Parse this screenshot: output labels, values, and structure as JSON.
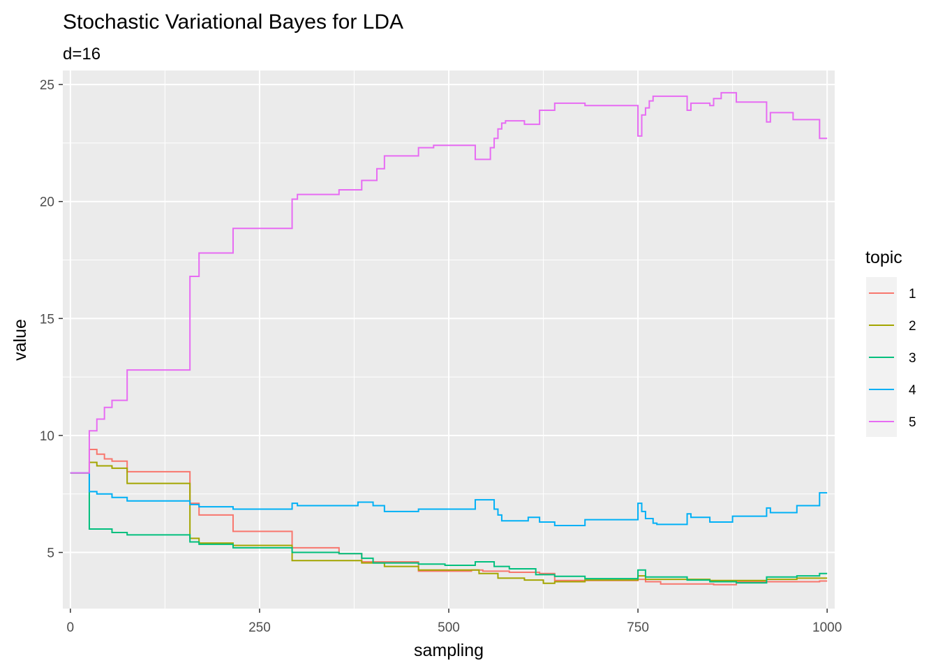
{
  "chart_data": {
    "type": "line",
    "title": "Stochastic Variational Bayes for LDA",
    "subtitle": "d=16",
    "xlabel": "sampling",
    "ylabel": "value",
    "xlim": [
      -10,
      1010
    ],
    "ylim": [
      2.6,
      25.6
    ],
    "x_ticks": [
      0,
      250,
      500,
      750,
      1000
    ],
    "x_tick_labels": [
      "0",
      "250",
      "500",
      "750",
      "1000"
    ],
    "y_ticks": [
      5,
      10,
      15,
      20,
      25
    ],
    "y_tick_labels": [
      "5",
      "10",
      "15",
      "20",
      "25"
    ],
    "step": true,
    "grid": true,
    "legend_position": "right",
    "legend_title": "topic",
    "series": [
      {
        "name": "1",
        "color": "#F8766D",
        "points": [
          [
            0,
            8.4
          ],
          [
            25,
            8.4
          ],
          [
            25,
            9.4
          ],
          [
            35,
            9.4
          ],
          [
            35,
            9.2
          ],
          [
            45,
            9.2
          ],
          [
            45,
            9.0
          ],
          [
            55,
            9.0
          ],
          [
            55,
            8.9
          ],
          [
            75,
            8.9
          ],
          [
            75,
            8.45
          ],
          [
            158,
            8.45
          ],
          [
            158,
            7.1
          ],
          [
            170,
            7.1
          ],
          [
            170,
            6.6
          ],
          [
            215,
            6.6
          ],
          [
            215,
            5.9
          ],
          [
            293,
            5.9
          ],
          [
            293,
            5.2
          ],
          [
            355,
            5.2
          ],
          [
            355,
            4.95
          ],
          [
            385,
            4.95
          ],
          [
            385,
            4.6
          ],
          [
            460,
            4.6
          ],
          [
            460,
            4.2
          ],
          [
            530,
            4.2
          ],
          [
            530,
            4.25
          ],
          [
            545,
            4.25
          ],
          [
            545,
            4.2
          ],
          [
            580,
            4.2
          ],
          [
            580,
            4.15
          ],
          [
            620,
            4.15
          ],
          [
            620,
            4.1
          ],
          [
            640,
            4.1
          ],
          [
            640,
            3.8
          ],
          [
            750,
            3.8
          ],
          [
            750,
            3.85
          ],
          [
            760,
            3.85
          ],
          [
            760,
            3.75
          ],
          [
            780,
            3.75
          ],
          [
            780,
            3.65
          ],
          [
            850,
            3.65
          ],
          [
            850,
            3.62
          ],
          [
            880,
            3.62
          ],
          [
            880,
            3.75
          ],
          [
            990,
            3.75
          ],
          [
            990,
            3.78
          ],
          [
            1000,
            3.78
          ]
        ]
      },
      {
        "name": "2",
        "color": "#A3A500",
        "points": [
          [
            0,
            8.4
          ],
          [
            25,
            8.4
          ],
          [
            25,
            8.85
          ],
          [
            35,
            8.85
          ],
          [
            35,
            8.7
          ],
          [
            55,
            8.7
          ],
          [
            55,
            8.6
          ],
          [
            75,
            8.6
          ],
          [
            75,
            7.95
          ],
          [
            158,
            7.95
          ],
          [
            158,
            5.6
          ],
          [
            170,
            5.6
          ],
          [
            170,
            5.4
          ],
          [
            215,
            5.4
          ],
          [
            215,
            5.3
          ],
          [
            293,
            5.3
          ],
          [
            293,
            4.65
          ],
          [
            385,
            4.65
          ],
          [
            385,
            4.55
          ],
          [
            415,
            4.55
          ],
          [
            415,
            4.4
          ],
          [
            460,
            4.4
          ],
          [
            460,
            4.25
          ],
          [
            540,
            4.25
          ],
          [
            540,
            4.1
          ],
          [
            565,
            4.1
          ],
          [
            565,
            3.9
          ],
          [
            600,
            3.9
          ],
          [
            600,
            3.82
          ],
          [
            625,
            3.82
          ],
          [
            625,
            3.68
          ],
          [
            640,
            3.68
          ],
          [
            640,
            3.75
          ],
          [
            680,
            3.75
          ],
          [
            680,
            3.82
          ],
          [
            750,
            3.82
          ],
          [
            750,
            4.0
          ],
          [
            760,
            4.0
          ],
          [
            760,
            3.85
          ],
          [
            845,
            3.85
          ],
          [
            845,
            3.8
          ],
          [
            920,
            3.8
          ],
          [
            920,
            3.85
          ],
          [
            960,
            3.85
          ],
          [
            960,
            3.9
          ],
          [
            1000,
            3.9
          ]
        ]
      },
      {
        "name": "3",
        "color": "#00BF7D",
        "points": [
          [
            0,
            8.4
          ],
          [
            25,
            8.4
          ],
          [
            25,
            6.0
          ],
          [
            55,
            6.0
          ],
          [
            55,
            5.85
          ],
          [
            75,
            5.85
          ],
          [
            75,
            5.75
          ],
          [
            158,
            5.75
          ],
          [
            158,
            5.45
          ],
          [
            170,
            5.45
          ],
          [
            170,
            5.35
          ],
          [
            215,
            5.35
          ],
          [
            215,
            5.2
          ],
          [
            293,
            5.2
          ],
          [
            293,
            5.0
          ],
          [
            355,
            5.0
          ],
          [
            355,
            4.95
          ],
          [
            385,
            4.95
          ],
          [
            385,
            4.75
          ],
          [
            400,
            4.75
          ],
          [
            400,
            4.55
          ],
          [
            460,
            4.55
          ],
          [
            460,
            4.5
          ],
          [
            495,
            4.5
          ],
          [
            495,
            4.45
          ],
          [
            535,
            4.45
          ],
          [
            535,
            4.6
          ],
          [
            560,
            4.6
          ],
          [
            560,
            4.4
          ],
          [
            580,
            4.4
          ],
          [
            580,
            4.3
          ],
          [
            615,
            4.3
          ],
          [
            615,
            4.05
          ],
          [
            640,
            4.05
          ],
          [
            640,
            3.98
          ],
          [
            680,
            3.98
          ],
          [
            680,
            3.88
          ],
          [
            750,
            3.88
          ],
          [
            750,
            4.25
          ],
          [
            760,
            4.25
          ],
          [
            760,
            3.95
          ],
          [
            815,
            3.95
          ],
          [
            815,
            3.82
          ],
          [
            845,
            3.82
          ],
          [
            845,
            3.75
          ],
          [
            880,
            3.75
          ],
          [
            880,
            3.7
          ],
          [
            920,
            3.7
          ],
          [
            920,
            3.95
          ],
          [
            960,
            3.95
          ],
          [
            960,
            4.0
          ],
          [
            990,
            4.0
          ],
          [
            990,
            4.1
          ],
          [
            1000,
            4.1
          ]
        ]
      },
      {
        "name": "4",
        "color": "#00B0F6",
        "points": [
          [
            0,
            8.4
          ],
          [
            25,
            8.4
          ],
          [
            25,
            7.6
          ],
          [
            35,
            7.6
          ],
          [
            35,
            7.5
          ],
          [
            55,
            7.5
          ],
          [
            55,
            7.35
          ],
          [
            75,
            7.35
          ],
          [
            75,
            7.2
          ],
          [
            158,
            7.2
          ],
          [
            158,
            7.05
          ],
          [
            170,
            7.05
          ],
          [
            170,
            6.95
          ],
          [
            215,
            6.95
          ],
          [
            215,
            6.85
          ],
          [
            293,
            6.85
          ],
          [
            293,
            7.1
          ],
          [
            300,
            7.1
          ],
          [
            300,
            7.0
          ],
          [
            380,
            7.0
          ],
          [
            380,
            7.15
          ],
          [
            400,
            7.15
          ],
          [
            400,
            7.0
          ],
          [
            415,
            7.0
          ],
          [
            415,
            6.75
          ],
          [
            460,
            6.75
          ],
          [
            460,
            6.85
          ],
          [
            535,
            6.85
          ],
          [
            535,
            7.25
          ],
          [
            560,
            7.25
          ],
          [
            560,
            6.85
          ],
          [
            565,
            6.85
          ],
          [
            565,
            6.6
          ],
          [
            570,
            6.6
          ],
          [
            570,
            6.35
          ],
          [
            605,
            6.35
          ],
          [
            605,
            6.5
          ],
          [
            620,
            6.5
          ],
          [
            620,
            6.3
          ],
          [
            640,
            6.3
          ],
          [
            640,
            6.15
          ],
          [
            680,
            6.15
          ],
          [
            680,
            6.4
          ],
          [
            750,
            6.4
          ],
          [
            750,
            7.1
          ],
          [
            755,
            7.1
          ],
          [
            755,
            6.75
          ],
          [
            760,
            6.75
          ],
          [
            760,
            6.45
          ],
          [
            770,
            6.45
          ],
          [
            770,
            6.25
          ],
          [
            775,
            6.25
          ],
          [
            775,
            6.2
          ],
          [
            815,
            6.2
          ],
          [
            815,
            6.65
          ],
          [
            820,
            6.65
          ],
          [
            820,
            6.5
          ],
          [
            845,
            6.5
          ],
          [
            845,
            6.3
          ],
          [
            875,
            6.3
          ],
          [
            875,
            6.55
          ],
          [
            920,
            6.55
          ],
          [
            920,
            6.9
          ],
          [
            925,
            6.9
          ],
          [
            925,
            6.7
          ],
          [
            960,
            6.7
          ],
          [
            960,
            7.0
          ],
          [
            990,
            7.0
          ],
          [
            990,
            7.55
          ],
          [
            1000,
            7.55
          ]
        ]
      },
      {
        "name": "5",
        "color": "#E76BF3",
        "points": [
          [
            0,
            8.4
          ],
          [
            25,
            8.4
          ],
          [
            25,
            10.2
          ],
          [
            35,
            10.2
          ],
          [
            35,
            10.7
          ],
          [
            45,
            10.7
          ],
          [
            45,
            11.2
          ],
          [
            55,
            11.2
          ],
          [
            55,
            11.5
          ],
          [
            75,
            11.5
          ],
          [
            75,
            12.8
          ],
          [
            158,
            12.8
          ],
          [
            158,
            16.8
          ],
          [
            170,
            16.8
          ],
          [
            170,
            17.8
          ],
          [
            215,
            17.8
          ],
          [
            215,
            18.85
          ],
          [
            293,
            18.85
          ],
          [
            293,
            20.1
          ],
          [
            300,
            20.1
          ],
          [
            300,
            20.3
          ],
          [
            355,
            20.3
          ],
          [
            355,
            20.5
          ],
          [
            385,
            20.5
          ],
          [
            385,
            20.9
          ],
          [
            405,
            20.9
          ],
          [
            405,
            21.4
          ],
          [
            415,
            21.4
          ],
          [
            415,
            21.95
          ],
          [
            460,
            21.95
          ],
          [
            460,
            22.3
          ],
          [
            480,
            22.3
          ],
          [
            480,
            22.4
          ],
          [
            535,
            22.4
          ],
          [
            535,
            21.8
          ],
          [
            555,
            21.8
          ],
          [
            555,
            22.3
          ],
          [
            560,
            22.3
          ],
          [
            560,
            22.7
          ],
          [
            565,
            22.7
          ],
          [
            565,
            23.1
          ],
          [
            570,
            23.1
          ],
          [
            570,
            23.35
          ],
          [
            575,
            23.35
          ],
          [
            575,
            23.45
          ],
          [
            600,
            23.45
          ],
          [
            600,
            23.3
          ],
          [
            620,
            23.3
          ],
          [
            620,
            23.9
          ],
          [
            640,
            23.9
          ],
          [
            640,
            24.2
          ],
          [
            680,
            24.2
          ],
          [
            680,
            24.1
          ],
          [
            750,
            24.1
          ],
          [
            750,
            22.8
          ],
          [
            755,
            22.8
          ],
          [
            755,
            23.7
          ],
          [
            760,
            23.7
          ],
          [
            760,
            24.0
          ],
          [
            765,
            24.0
          ],
          [
            765,
            24.3
          ],
          [
            770,
            24.3
          ],
          [
            770,
            24.5
          ],
          [
            815,
            24.5
          ],
          [
            815,
            23.9
          ],
          [
            820,
            23.9
          ],
          [
            820,
            24.2
          ],
          [
            845,
            24.2
          ],
          [
            845,
            24.1
          ],
          [
            850,
            24.1
          ],
          [
            850,
            24.4
          ],
          [
            860,
            24.4
          ],
          [
            860,
            24.65
          ],
          [
            880,
            24.65
          ],
          [
            880,
            24.25
          ],
          [
            920,
            24.25
          ],
          [
            920,
            23.4
          ],
          [
            925,
            23.4
          ],
          [
            925,
            23.8
          ],
          [
            955,
            23.8
          ],
          [
            955,
            23.5
          ],
          [
            990,
            23.5
          ],
          [
            990,
            22.7
          ],
          [
            1000,
            22.7
          ]
        ]
      }
    ]
  }
}
